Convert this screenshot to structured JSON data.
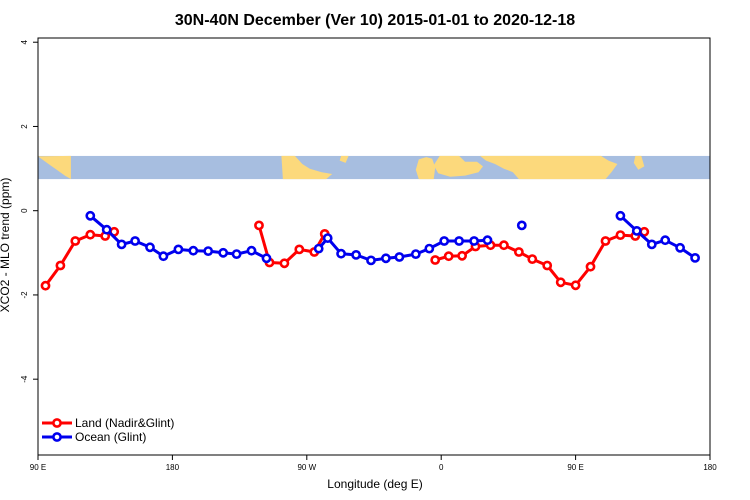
{
  "chart_data": {
    "type": "line",
    "title": "30N-40N December (Ver 10)   2015-01-01 to 2020-12-18",
    "xlabel": "Longitude (deg E)",
    "ylabel": "XCO2 - MLO trend (ppm)",
    "xlim": [
      90,
      540
    ],
    "ylim": [
      -5.8,
      4.1
    ],
    "xticks": [
      {
        "value": 90,
        "label": "90 E"
      },
      {
        "value": 180,
        "label": "180"
      },
      {
        "value": 270,
        "label": "90 W"
      },
      {
        "value": 360,
        "label": "0"
      },
      {
        "value": 450,
        "label": "90 E"
      },
      {
        "value": 540,
        "label": "180"
      }
    ],
    "yticks": [
      {
        "value": -4,
        "label": "-4"
      },
      {
        "value": -2,
        "label": "-2"
      },
      {
        "value": 0,
        "label": "0"
      },
      {
        "value": 2,
        "label": "2"
      },
      {
        "value": 4,
        "label": "4"
      }
    ],
    "colors": {
      "land": "#ff0000",
      "ocean": "#0000ee",
      "map_ocean": "#a7bee0",
      "map_land": "#fcd97c"
    },
    "map_strip": {
      "y_top": 1.3,
      "y_bottom": 0.75
    },
    "legend": {
      "placement": "bottom-left"
    },
    "series": [
      {
        "name": "Land (Nadir&Glint)",
        "color": "#ff0000",
        "segments": [
          [
            [
              95,
              -1.78
            ],
            [
              105,
              -1.3
            ],
            [
              115,
              -0.72
            ],
            [
              125,
              -0.57
            ],
            [
              135,
              -0.6
            ],
            [
              141,
              -0.5
            ]
          ],
          [
            [
              238,
              -0.35
            ],
            [
              245,
              -1.23
            ],
            [
              255,
              -1.25
            ],
            [
              265,
              -0.92
            ],
            [
              275,
              -0.98
            ],
            [
              282,
              -0.55
            ]
          ],
          [
            [
              356,
              -1.17
            ],
            [
              365,
              -1.08
            ],
            [
              374,
              -1.07
            ],
            [
              383,
              -0.85
            ],
            [
              393,
              -0.82
            ],
            [
              402,
              -0.82
            ],
            [
              412,
              -0.98
            ],
            [
              421,
              -1.15
            ],
            [
              431,
              -1.3
            ],
            [
              440,
              -1.7
            ],
            [
              450,
              -1.77
            ],
            [
              460,
              -1.33
            ],
            [
              470,
              -0.72
            ],
            [
              480,
              -0.58
            ],
            [
              490,
              -0.6
            ],
            [
              496,
              -0.5
            ]
          ]
        ]
      },
      {
        "name": "Ocean (Glint)",
        "color": "#0000ee",
        "segments": [
          [
            [
              125,
              -0.12
            ],
            [
              136,
              -0.45
            ],
            [
              146,
              -0.8
            ],
            [
              155,
              -0.72
            ],
            [
              165,
              -0.87
            ],
            [
              174,
              -1.08
            ],
            [
              184,
              -0.92
            ],
            [
              194,
              -0.95
            ],
            [
              204,
              -0.96
            ],
            [
              214,
              -1.0
            ],
            [
              223,
              -1.03
            ],
            [
              233,
              -0.95
            ],
            [
              243,
              -1.13
            ]
          ],
          [
            [
              278,
              -0.9
            ],
            [
              284,
              -0.65
            ],
            [
              293,
              -1.02
            ],
            [
              303,
              -1.05
            ],
            [
              313,
              -1.18
            ],
            [
              323,
              -1.13
            ],
            [
              332,
              -1.1
            ],
            [
              343,
              -1.03
            ],
            [
              352,
              -0.9
            ],
            [
              362,
              -0.72
            ],
            [
              372,
              -0.72
            ],
            [
              382,
              -0.72
            ],
            [
              391,
              -0.7
            ]
          ],
          [
            [
              414,
              -0.35
            ]
          ],
          [
            [
              480,
              -0.12
            ],
            [
              491,
              -0.48
            ],
            [
              501,
              -0.8
            ],
            [
              510,
              -0.7
            ],
            [
              520,
              -0.88
            ],
            [
              530,
              -1.12
            ]
          ]
        ]
      }
    ]
  }
}
